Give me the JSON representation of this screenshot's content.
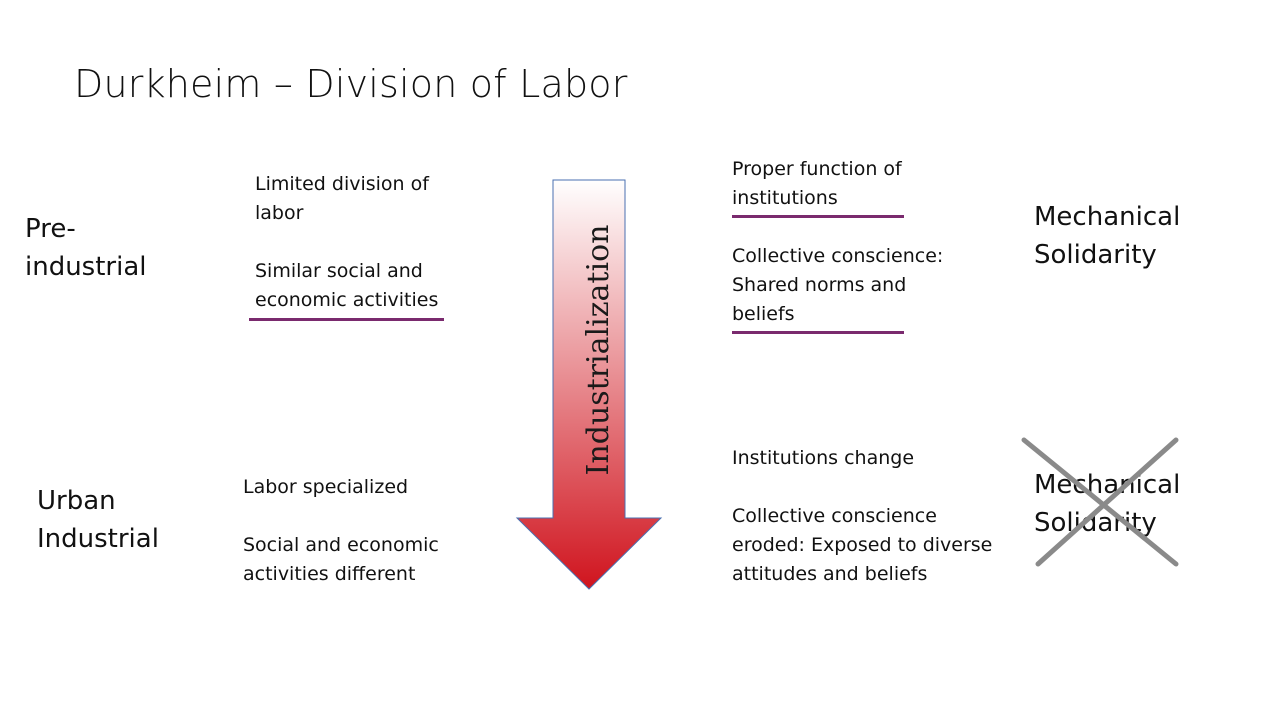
{
  "title": "Durkheim – Division of Labor",
  "rows": {
    "pre_industrial": {
      "label_line1": "Pre-",
      "label_line2": "industrial",
      "left_text1_line1": "Limited division of",
      "left_text1_line2": "labor",
      "left_text2_line1": "Similar social and",
      "left_text2_line2": "economic activities",
      "right_text1_line1": "Proper function of",
      "right_text1_line2": "institutions",
      "right_text2_line1": "Collective conscience:",
      "right_text2_line2": "Shared norms and",
      "right_text2_line3": "beliefs",
      "solidarity_line1": "Mechanical",
      "solidarity_line2": "Solidarity"
    },
    "urban_industrial": {
      "label_line1": "Urban",
      "label_line2": "Industrial",
      "left_text1": "Labor specialized",
      "left_text2_line1": "Social and economic",
      "left_text2_line2": "activities different",
      "right_text1": "Institutions change",
      "right_text2_line1": "Collective conscience",
      "right_text2_line2": "eroded: Exposed to diverse",
      "right_text2_line3": "attitudes and beliefs",
      "solidarity_line1": "Mechanical",
      "solidarity_line2": "Solidarity"
    }
  },
  "arrow": {
    "label": "Industrialization",
    "color_top": "#ffffff",
    "color_bottom": "#d0141e"
  },
  "accent_color": "#7a2a6e",
  "cross_color": "#8a8a8a"
}
